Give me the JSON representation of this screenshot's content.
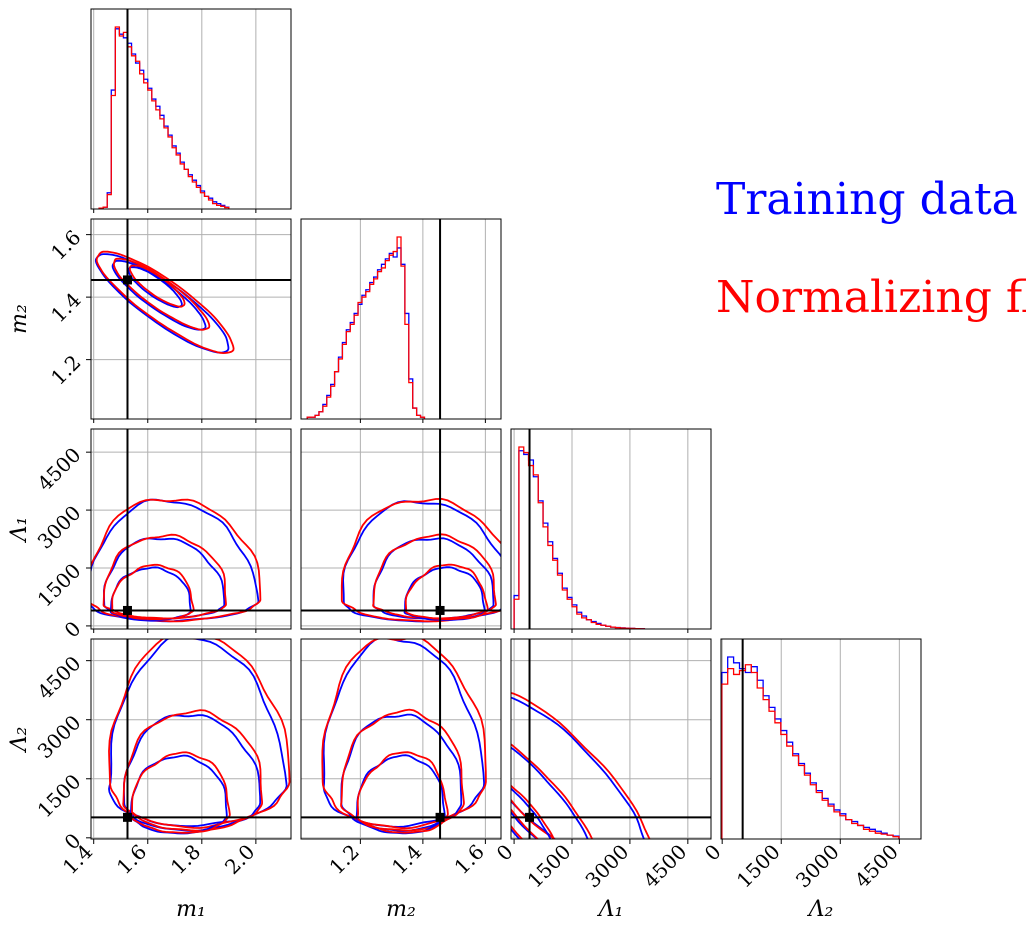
{
  "chart_data": {
    "type": "corner",
    "params": [
      "m1",
      "m2",
      "Λ1",
      "Λ2"
    ],
    "axis_labels": [
      "m₁",
      "m₂",
      "Λ₁",
      "Λ₂"
    ],
    "ranges": [
      [
        1.39,
        2.13
      ],
      [
        1.01,
        1.65
      ],
      [
        -80,
        5100
      ],
      [
        -30,
        5050
      ]
    ],
    "ticks": [
      {
        "values": [
          1.4,
          1.6,
          1.8,
          2.0
        ],
        "labels": [
          "1.4",
          "1.6",
          "1.8",
          "2.0"
        ]
      },
      {
        "values": [
          1.2,
          1.4,
          1.6
        ],
        "labels": [
          "1.2",
          "1.4",
          "1.6"
        ]
      },
      {
        "values": [
          0,
          1500,
          3000,
          4500
        ],
        "labels": [
          "0",
          "1500",
          "3000",
          "4500"
        ]
      },
      {
        "values": [
          0,
          1500,
          3000,
          4500
        ],
        "labels": [
          "0",
          "1500",
          "3000",
          "4500"
        ]
      }
    ],
    "truth": [
      1.525,
      1.455,
      400,
      520
    ],
    "grid": true,
    "legend_placement": "right",
    "series": [
      {
        "name": "Training data",
        "color": "#0000ff"
      },
      {
        "name": "Normalizing flow",
        "color": "#ff0000"
      }
    ],
    "histograms": [
      {
        "param": "m1",
        "start": 1.42,
        "width": 0.015,
        "blue": [
          0.5,
          1,
          9,
          66,
          100,
          97,
          95,
          92,
          86,
          81,
          77,
          72,
          67,
          61,
          57,
          52,
          46,
          41,
          35,
          31,
          26,
          22,
          19,
          16,
          13,
          10,
          7,
          6,
          4,
          3,
          2,
          1
        ],
        "red": [
          0.5,
          1,
          8,
          63,
          101,
          96,
          98,
          90,
          85,
          82,
          75,
          70,
          66,
          60,
          55,
          50,
          45,
          40,
          34,
          30,
          25,
          22,
          18,
          15,
          12,
          9,
          7,
          5,
          3,
          2,
          1.5,
          0.8
        ]
      },
      {
        "param": "m2",
        "start": 1.03,
        "width": 0.0125,
        "blue": [
          1,
          1,
          2,
          4,
          8,
          13,
          19,
          26,
          34,
          42,
          49,
          53,
          58,
          63,
          68,
          71,
          75,
          78,
          82,
          85,
          88,
          91,
          89,
          94,
          85,
          58,
          22,
          6,
          2,
          1
        ],
        "red": [
          1,
          1,
          2,
          4,
          7,
          12,
          18,
          26,
          33,
          41,
          48,
          52,
          57,
          64,
          67,
          70,
          74,
          77,
          81,
          83,
          87,
          90,
          92,
          100,
          84,
          52,
          20,
          6,
          2,
          1
        ]
      },
      {
        "param": "Λ1",
        "start": 0,
        "width": 125,
        "blue": [
          18,
          96,
          94,
          91,
          82,
          69,
          57,
          47,
          38,
          30,
          22,
          17,
          13,
          9,
          7,
          5,
          4,
          3,
          2,
          1.5,
          1,
          0.8,
          0.6,
          0.4,
          0.3,
          0.2,
          0.1
        ],
        "red": [
          16,
          98,
          95,
          88,
          83,
          68,
          55,
          45,
          37,
          29,
          21,
          16,
          12,
          8,
          6,
          5,
          3.5,
          2.5,
          2,
          1.5,
          1,
          0.7,
          0.5,
          0.4,
          0.3,
          0.2,
          0.1
        ]
      },
      {
        "param": "Λ2",
        "start": -10,
        "width": 150,
        "blue": [
          86,
          94,
          91,
          88,
          86,
          89,
          82,
          74,
          68,
          62,
          56,
          50,
          44,
          39,
          34,
          29,
          25,
          21,
          18,
          15,
          13,
          10,
          9,
          7,
          6,
          5,
          4,
          3,
          2,
          1.5
        ],
        "red": [
          80,
          88,
          85,
          87,
          90,
          86,
          78,
          72,
          66,
          60,
          54,
          48,
          43,
          38,
          33,
          28,
          24,
          20,
          17,
          14,
          12,
          10,
          8,
          7,
          5,
          4,
          3,
          2.5,
          2,
          1.2
        ]
      }
    ],
    "legend": {
      "training": "Training data",
      "flow": "Normalizing flow"
    }
  }
}
